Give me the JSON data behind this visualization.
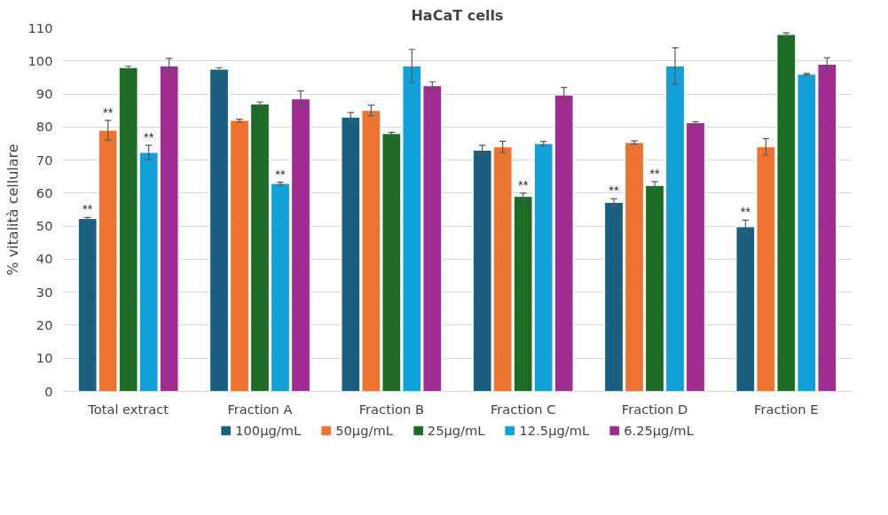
{
  "chart_data": {
    "type": "bar",
    "title": "HaCaT cells",
    "ylabel": "% vitalità cellulare",
    "categories": [
      "Total extract",
      "Fraction A",
      "Fraction B",
      "Fraction C",
      "Fraction D",
      "Fraction E"
    ],
    "series": [
      {
        "name": "100µg/mL",
        "color": "#1a5f80",
        "values": [
          52.3,
          97.5,
          83,
          73,
          57.2,
          49.8
        ],
        "errors": [
          0.3,
          0.5,
          1.4,
          1.5,
          1.1,
          2
        ],
        "value_labels": [
          "**",
          null,
          null,
          null,
          "**",
          "**"
        ]
      },
      {
        "name": "50µg/mL",
        "color": "#ec7430",
        "values": [
          79,
          82,
          85,
          74,
          75.3,
          74
        ],
        "errors": [
          3,
          0.4,
          1.6,
          1.7,
          0.5,
          2.5
        ],
        "value_labels": [
          "**",
          null,
          null,
          null,
          null,
          null
        ]
      },
      {
        "name": "25µg/mL",
        "color": "#1e6b26",
        "values": [
          98,
          87,
          78,
          59,
          62.3,
          108
        ],
        "errors": [
          0.4,
          0.6,
          0.4,
          1,
          1.2,
          0.5
        ],
        "value_labels": [
          null,
          null,
          null,
          "**",
          "**",
          null
        ]
      },
      {
        "name": "12.5µg/mL",
        "color": "#12a0d8",
        "values": [
          72.3,
          62.9,
          98.5,
          75,
          98.5,
          96
        ],
        "errors": [
          2.2,
          0.4,
          5,
          0.6,
          5.5,
          0.2
        ],
        "value_labels": [
          "**",
          "**",
          null,
          null,
          null,
          null
        ]
      },
      {
        "name": "6.25µg/mL",
        "color": "#a02c92",
        "values": [
          98.5,
          88.5,
          92.5,
          89.7,
          81.3,
          99
        ],
        "errors": [
          2.3,
          2.4,
          1.2,
          2.3,
          0.3,
          2
        ]
      }
    ],
    "ylim": [
      0,
      110
    ],
    "yticks": [
      0,
      10,
      20,
      30,
      40,
      50,
      60,
      70,
      80,
      90,
      100,
      110
    ],
    "grid": "y",
    "legend": "bottom"
  }
}
